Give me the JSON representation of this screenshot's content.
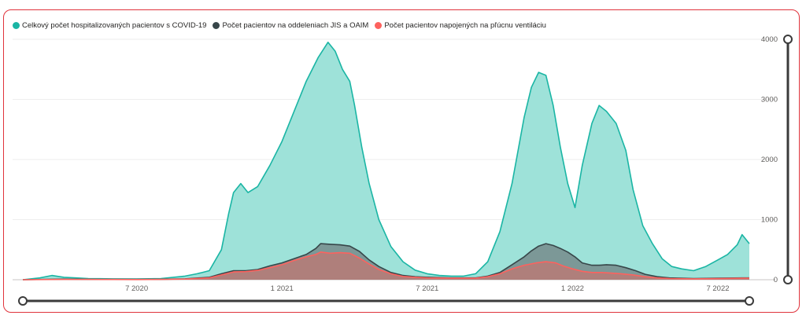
{
  "chart_data": {
    "type": "area",
    "title": "",
    "xlabel": "",
    "ylabel": "",
    "ylim": [
      0,
      4000
    ],
    "y_ticks": [
      "0",
      "1000",
      "2000",
      "3000",
      "4000"
    ],
    "x_ticks": [
      {
        "label": "7 2020",
        "month_index": 4
      },
      {
        "label": "1 2021",
        "month_index": 10
      },
      {
        "label": "7 2021",
        "month_index": 16
      },
      {
        "label": "1 2022",
        "month_index": 22
      },
      {
        "label": "7 2022",
        "month_index": 28
      }
    ],
    "x_range_months": [
      -0.7,
      29.3
    ],
    "x_domain_note": "month_index 0 = March 2020",
    "legend_position": "top-left",
    "series": [
      {
        "name": "Celkový počet hospitalizovaných pacientov s COVID-19",
        "color": "#1ab5a4",
        "fill": "#9ee2d9",
        "points": [
          [
            -0.7,
            0
          ],
          [
            0,
            30
          ],
          [
            0.5,
            70
          ],
          [
            1,
            40
          ],
          [
            1.5,
            30
          ],
          [
            2,
            20
          ],
          [
            3,
            15
          ],
          [
            4,
            12
          ],
          [
            5,
            20
          ],
          [
            6,
            60
          ],
          [
            6.5,
            100
          ],
          [
            7,
            150
          ],
          [
            7.5,
            500
          ],
          [
            7.8,
            1100
          ],
          [
            8,
            1450
          ],
          [
            8.3,
            1600
          ],
          [
            8.6,
            1450
          ],
          [
            9,
            1550
          ],
          [
            9.5,
            1900
          ],
          [
            10,
            2300
          ],
          [
            10.5,
            2800
          ],
          [
            11,
            3300
          ],
          [
            11.5,
            3700
          ],
          [
            11.9,
            3950
          ],
          [
            12.2,
            3800
          ],
          [
            12.5,
            3500
          ],
          [
            12.8,
            3300
          ],
          [
            13,
            2900
          ],
          [
            13.3,
            2200
          ],
          [
            13.6,
            1600
          ],
          [
            14,
            1000
          ],
          [
            14.5,
            550
          ],
          [
            15,
            300
          ],
          [
            15.5,
            160
          ],
          [
            16,
            100
          ],
          [
            16.5,
            70
          ],
          [
            17,
            60
          ],
          [
            17.5,
            60
          ],
          [
            18,
            100
          ],
          [
            18.5,
            300
          ],
          [
            19,
            800
          ],
          [
            19.5,
            1600
          ],
          [
            20,
            2700
          ],
          [
            20.3,
            3200
          ],
          [
            20.6,
            3450
          ],
          [
            20.9,
            3400
          ],
          [
            21.2,
            2900
          ],
          [
            21.5,
            2200
          ],
          [
            21.8,
            1600
          ],
          [
            22.1,
            1200
          ],
          [
            22.4,
            1900
          ],
          [
            22.8,
            2600
          ],
          [
            23.1,
            2900
          ],
          [
            23.4,
            2800
          ],
          [
            23.8,
            2600
          ],
          [
            24.2,
            2150
          ],
          [
            24.5,
            1500
          ],
          [
            24.9,
            900
          ],
          [
            25.3,
            600
          ],
          [
            25.7,
            350
          ],
          [
            26.1,
            220
          ],
          [
            26.5,
            180
          ],
          [
            27,
            150
          ],
          [
            27.5,
            220
          ],
          [
            28,
            330
          ],
          [
            28.4,
            420
          ],
          [
            28.8,
            580
          ],
          [
            29,
            750
          ],
          [
            29.3,
            600
          ]
        ]
      },
      {
        "name": "Počet pacientov na oddeleniach JIS a OAIM",
        "color": "#374649",
        "fill": "#768b8b",
        "points": [
          [
            -0.7,
            0
          ],
          [
            1,
            10
          ],
          [
            2,
            8
          ],
          [
            3,
            5
          ],
          [
            4,
            5
          ],
          [
            5,
            8
          ],
          [
            6,
            15
          ],
          [
            7,
            40
          ],
          [
            7.5,
            100
          ],
          [
            8,
            150
          ],
          [
            8.5,
            150
          ],
          [
            9,
            170
          ],
          [
            9.5,
            230
          ],
          [
            10,
            280
          ],
          [
            10.5,
            350
          ],
          [
            11,
            420
          ],
          [
            11.4,
            520
          ],
          [
            11.6,
            600
          ],
          [
            12,
            590
          ],
          [
            12.4,
            580
          ],
          [
            12.8,
            560
          ],
          [
            13.2,
            470
          ],
          [
            13.6,
            330
          ],
          [
            14,
            220
          ],
          [
            14.5,
            120
          ],
          [
            15,
            70
          ],
          [
            15.5,
            50
          ],
          [
            16,
            40
          ],
          [
            17,
            30
          ],
          [
            18,
            30
          ],
          [
            18.5,
            60
          ],
          [
            19,
            120
          ],
          [
            19.5,
            250
          ],
          [
            20,
            380
          ],
          [
            20.3,
            480
          ],
          [
            20.6,
            560
          ],
          [
            20.9,
            600
          ],
          [
            21.2,
            570
          ],
          [
            21.5,
            520
          ],
          [
            21.8,
            460
          ],
          [
            22.1,
            380
          ],
          [
            22.4,
            280
          ],
          [
            22.8,
            240
          ],
          [
            23.1,
            240
          ],
          [
            23.4,
            250
          ],
          [
            23.8,
            240
          ],
          [
            24.2,
            200
          ],
          [
            24.6,
            150
          ],
          [
            25,
            90
          ],
          [
            25.5,
            50
          ],
          [
            26,
            30
          ],
          [
            27,
            20
          ],
          [
            28,
            25
          ],
          [
            29,
            30
          ],
          [
            29.3,
            30
          ]
        ]
      },
      {
        "name": "Počet pacientov napojených na pľúcnu ventiláciu",
        "color": "#fd625e",
        "fill": "#b87a76",
        "points": [
          [
            -0.7,
            0
          ],
          [
            1,
            5
          ],
          [
            2,
            5
          ],
          [
            3,
            4
          ],
          [
            4,
            3
          ],
          [
            5,
            5
          ],
          [
            6,
            10
          ],
          [
            7,
            30
          ],
          [
            7.5,
            80
          ],
          [
            8,
            130
          ],
          [
            8.5,
            135
          ],
          [
            9,
            155
          ],
          [
            9.5,
            200
          ],
          [
            10,
            250
          ],
          [
            10.5,
            320
          ],
          [
            11,
            380
          ],
          [
            11.4,
            420
          ],
          [
            11.6,
            460
          ],
          [
            12,
            440
          ],
          [
            12.4,
            450
          ],
          [
            12.8,
            440
          ],
          [
            13.2,
            360
          ],
          [
            13.6,
            260
          ],
          [
            14,
            170
          ],
          [
            14.5,
            100
          ],
          [
            15,
            55
          ],
          [
            15.5,
            40
          ],
          [
            16,
            30
          ],
          [
            17,
            25
          ],
          [
            18,
            25
          ],
          [
            18.5,
            50
          ],
          [
            19,
            100
          ],
          [
            19.5,
            180
          ],
          [
            20,
            240
          ],
          [
            20.5,
            280
          ],
          [
            20.9,
            300
          ],
          [
            21.3,
            280
          ],
          [
            21.6,
            230
          ],
          [
            22,
            180
          ],
          [
            22.4,
            140
          ],
          [
            22.8,
            120
          ],
          [
            23.2,
            120
          ],
          [
            23.6,
            110
          ],
          [
            24,
            100
          ],
          [
            24.5,
            80
          ],
          [
            25,
            50
          ],
          [
            25.5,
            30
          ],
          [
            26,
            20
          ],
          [
            27,
            15
          ],
          [
            28,
            18
          ],
          [
            29,
            25
          ],
          [
            29.3,
            25
          ]
        ]
      }
    ]
  }
}
